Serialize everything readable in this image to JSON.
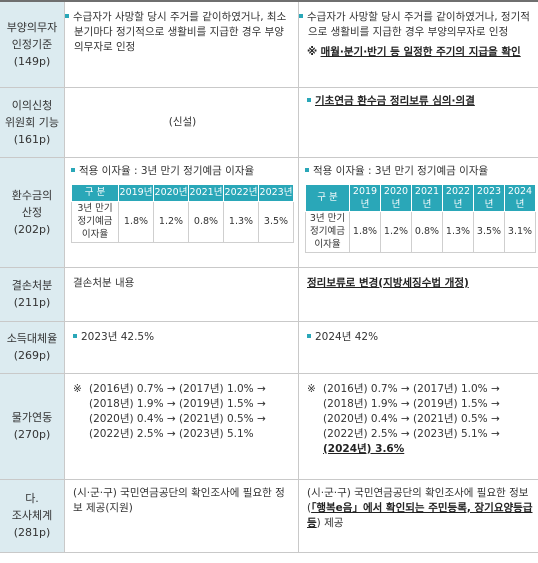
{
  "rows": [
    {
      "label": [
        "부양의무자",
        "인정기준",
        "(149p)"
      ],
      "old": {
        "bullet": "수급자가 사망할 당시 주거를 같이하였거나, 최소 분기마다 정기적으로 생활비를 지급한 경우 부양의무자로 인정"
      },
      "new": {
        "bullet": "수급자가 사망할 당시 주거를 같이하였거나, 정기적으로 생활비를 지급한 경우 부양의무자로 인정",
        "note_mark": "※",
        "note": "매월·분기·반기 등 일정한 주기의 지급을 확인"
      }
    },
    {
      "label": [
        "이의신청",
        "위원회 기능",
        "(161p)"
      ],
      "old": {
        "text": "(신설)"
      },
      "new": {
        "bullet": "기초연금 환수금 정리보류 심의·의결"
      }
    },
    {
      "label": [
        "환수금의",
        "산정",
        "(202p)"
      ],
      "old": {
        "bullet": "적용 이자율 : 3년 만기 정기예금 이자율",
        "table": {
          "header": [
            "구 분",
            "2019년",
            "2020년",
            "2021년",
            "2022년",
            "2023년"
          ],
          "row_label": [
            "3년 만기",
            "정기예금",
            "이자율"
          ],
          "values": [
            "1.8%",
            "1.2%",
            "0.8%",
            "1.3%",
            "3.5%"
          ]
        }
      },
      "new": {
        "bullet": "적용 이자율 : 3년 만기 정기예금 이자율",
        "table": {
          "header": [
            "구 분",
            "2019년",
            "2020년",
            "2021년",
            "2022년",
            "2023년",
            "2024년"
          ],
          "row_label": [
            "3년 만기",
            "정기예금",
            "이자율"
          ],
          "values": [
            "1.8%",
            "1.2%",
            "0.8%",
            "1.3%",
            "3.5%",
            "3.1%"
          ]
        }
      }
    },
    {
      "label": [
        "결손처분",
        "(211p)"
      ],
      "old": {
        "text": "결손처분 내용"
      },
      "new": {
        "text": "정리보류로 변경(지방세징수법 개정)"
      }
    },
    {
      "label": [
        "소득대체율",
        "(269p)"
      ],
      "old": {
        "bullet": "2023년 42.5%"
      },
      "new": {
        "bullet": "2024년 42%"
      }
    },
    {
      "label": [
        "물가연동",
        "(270p)"
      ],
      "old": {
        "mark": "※",
        "lines": [
          "(2016년) 0.7% → (2017년) 1.0% →",
          "(2018년) 1.9% → (2019년) 1.5% →",
          "(2020년) 0.4% → (2021년) 0.5% →",
          "(2022년) 2.5% → (2023년) 5.1%"
        ]
      },
      "new": {
        "mark": "※",
        "lines": [
          "(2016년) 0.7% → (2017년) 1.0% →",
          "(2018년) 1.9% → (2019년) 1.5% →",
          "(2020년) 0.4% → (2021년) 0.5% →",
          "(2022년) 2.5% → (2023년) 5.1% →"
        ],
        "last": "(2024년) 3.6%"
      }
    },
    {
      "label": [
        "다.",
        "조사체계",
        "(281p)"
      ],
      "old": {
        "text": "(시·군·구) 국민연금공단의 확인조사에 필요한 정보 제공(지원)"
      },
      "new": {
        "pre": "(시·군·구) 국민연금공단의 확인조사에 필요한 정보(",
        "emph": "「행복e음」에서 확인되는 주민등록, 장기요양등급 등",
        "post": ") 제공"
      }
    }
  ]
}
